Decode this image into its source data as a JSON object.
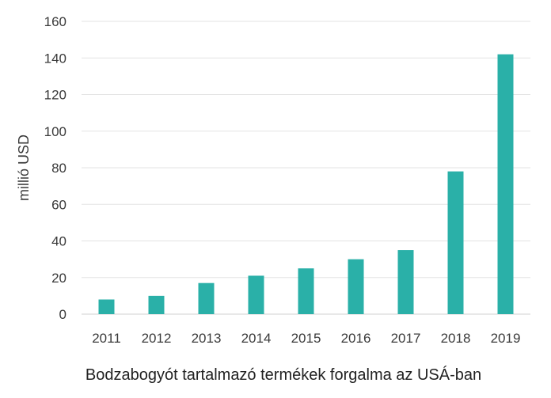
{
  "chart_data": {
    "type": "bar",
    "categories": [
      "2011",
      "2012",
      "2013",
      "2014",
      "2015",
      "2016",
      "2017",
      "2018",
      "2019"
    ],
    "values": [
      8,
      10,
      17,
      21,
      25,
      30,
      35,
      78,
      142
    ],
    "ylabel": "millió USD",
    "xlabel": "",
    "caption": "Bodzabogyót tartalmazó termékek forgalma az USÁ-ban",
    "ylim": [
      0,
      160
    ],
    "yticks": [
      0,
      20,
      40,
      60,
      80,
      100,
      120,
      140,
      160
    ],
    "grid": true,
    "bar_color": "#2ab0a8",
    "grid_color": "#e3e3e3"
  }
}
